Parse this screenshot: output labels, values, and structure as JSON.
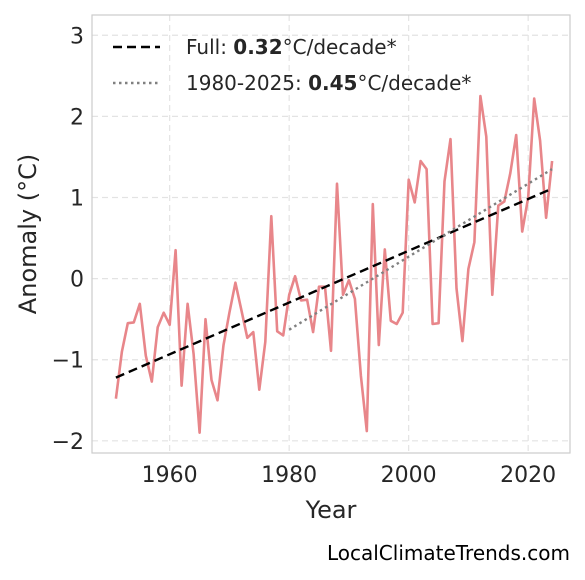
{
  "chart_data": {
    "type": "line",
    "title": "",
    "xlabel": "Year",
    "ylabel": "Anomaly (°C)",
    "xlim": [
      1947,
      2027
    ],
    "ylim": [
      -2.15,
      3.25
    ],
    "x_ticks": [
      1960,
      1980,
      2000,
      2020
    ],
    "x_tick_labels": [
      "1960",
      "1980",
      "2000",
      "2020"
    ],
    "y_ticks": [
      -2,
      -1,
      0,
      1,
      2,
      3
    ],
    "y_tick_labels": [
      "−2",
      "−1",
      "0",
      "1",
      "2",
      "3"
    ],
    "grid": true,
    "legend_position": "top-left",
    "series": [
      {
        "kind": "anomaly",
        "color": "#e8868a",
        "x": [
          1951,
          1952,
          1953,
          1954,
          1955,
          1956,
          1957,
          1958,
          1959,
          1960,
          1961,
          1962,
          1963,
          1964,
          1965,
          1966,
          1967,
          1968,
          1969,
          1970,
          1971,
          1972,
          1973,
          1974,
          1975,
          1976,
          1977,
          1978,
          1979,
          1980,
          1981,
          1982,
          1983,
          1984,
          1985,
          1986,
          1987,
          1988,
          1989,
          1990,
          1991,
          1992,
          1993,
          1994,
          1995,
          1996,
          1997,
          1998,
          1999,
          2000,
          2001,
          2002,
          2003,
          2004,
          2005,
          2006,
          2007,
          2008,
          2009,
          2010,
          2011,
          2012,
          2013,
          2014,
          2015,
          2016,
          2017,
          2018,
          2019,
          2020,
          2021,
          2022,
          2023,
          2024
        ],
        "y": [
          -1.48,
          -0.9,
          -0.55,
          -0.54,
          -0.31,
          -0.95,
          -1.27,
          -0.6,
          -0.42,
          -0.57,
          0.35,
          -1.32,
          -0.31,
          -0.93,
          -1.9,
          -0.5,
          -1.25,
          -1.5,
          -0.82,
          -0.42,
          -0.05,
          -0.39,
          -0.73,
          -0.66,
          -1.37,
          -0.78,
          0.77,
          -0.65,
          -0.7,
          -0.2,
          0.03,
          -0.27,
          -0.26,
          -0.66,
          -0.1,
          -0.1,
          -0.89,
          1.17,
          -0.2,
          -0.02,
          -0.25,
          -1.2,
          -1.88,
          0.92,
          -0.82,
          0.36,
          -0.52,
          -0.56,
          -0.42,
          1.22,
          0.94,
          1.45,
          1.35,
          -0.56,
          -0.55,
          1.2,
          1.72,
          -0.12,
          -0.77,
          0.12,
          0.45,
          2.25,
          1.75,
          -0.2,
          0.9,
          0.95,
          1.3,
          1.77,
          0.58,
          1.0,
          2.22,
          1.7,
          0.75,
          1.45
        ]
      },
      {
        "kind": "trend",
        "name": "Full: 0.32°C/decade*",
        "label_prefix": "Full: ",
        "label_value": "0.32",
        "label_suffix": "°C/decade*",
        "style": "dashed",
        "color": "#000000",
        "x": [
          1951,
          2024
        ],
        "y": [
          -1.22,
          1.11
        ]
      },
      {
        "kind": "trend",
        "name": "1980-2025: 0.45°C/decade*",
        "label_prefix": "1980-2025: ",
        "label_value": "0.45",
        "label_suffix": "°C/decade*",
        "style": "dotted",
        "color": "#808080",
        "x": [
          1980,
          2024
        ],
        "y": [
          -0.63,
          1.35
        ]
      }
    ]
  },
  "watermark": "LocalClimateTrends.com"
}
